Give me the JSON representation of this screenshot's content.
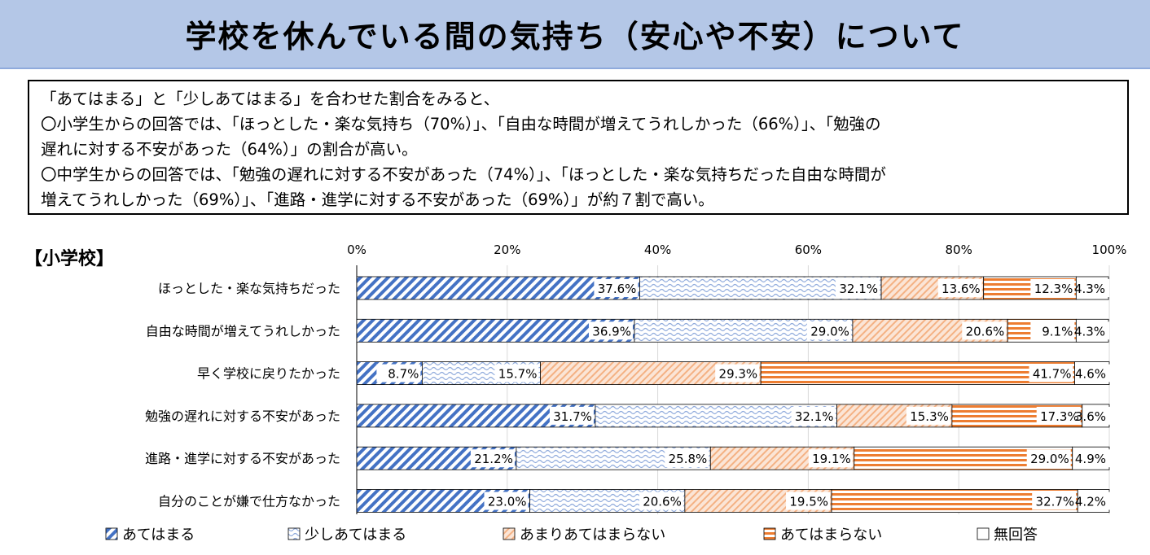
{
  "header": {
    "title": "学校を休んでいる間の気持ち（安心や不安）について"
  },
  "summary": {
    "lines": [
      "「あてはまる」と「少しあてはまる」を合わせた割合をみると、",
      "〇小学生からの回答では、「ほっとした・楽な気持ち（70%）」、「自由な時間が増えてうれしかった（66%）」、「勉強の",
      "遅れに対する不安があった（64%）」の割合が高い。",
      "〇中学生からの回答では、「勉強の遅れに対する不安があった（74%）」、「ほっとした・楽な気持ちだった自由な時間が",
      "増えてうれしかった（69%）」、「進路・進学に対する不安があった（69%）」が約７割で高い。"
    ]
  },
  "section_label": "【小学校】",
  "chart_data": {
    "type": "bar",
    "orientation": "horizontal",
    "stacked": true,
    "xlim": [
      0,
      100
    ],
    "x_ticks": [
      "0%",
      "20%",
      "40%",
      "60%",
      "80%",
      "100%"
    ],
    "categories": [
      "ほっとした・楽な気持ちだった",
      "自由な時間が増えてうれしかった",
      "早く学校に戻りたかった",
      "勉強の遅れに対する不安があった",
      "進路・進学に対する不安があった",
      "自分のことが嫌で仕方なかった"
    ],
    "series": [
      {
        "name": "あてはまる",
        "values": [
          37.6,
          36.9,
          8.7,
          31.7,
          21.2,
          23.0
        ],
        "labels": [
          "37.6%",
          "36.9%",
          "8.7%",
          "31.7%",
          "21.2%",
          "23.0%"
        ],
        "pattern": "diagonal",
        "color": "#4472c4"
      },
      {
        "name": "少しあてはまる",
        "values": [
          32.1,
          29.0,
          15.7,
          32.1,
          25.8,
          20.6
        ],
        "labels": [
          "32.1%",
          "29.0%",
          "15.7%",
          "32.1%",
          "25.8%",
          "20.6%"
        ],
        "pattern": "wave",
        "color": "#8faadc"
      },
      {
        "name": "あまりあてはまらない",
        "values": [
          13.6,
          20.6,
          29.3,
          15.3,
          19.1,
          19.5
        ],
        "labels": [
          "13.6%",
          "20.6%",
          "29.3%",
          "15.3%",
          "19.1%",
          "19.5%"
        ],
        "pattern": "dots",
        "color": "#f4b183"
      },
      {
        "name": "あてはまらない",
        "values": [
          12.3,
          9.1,
          41.7,
          17.3,
          29.0,
          32.7
        ],
        "labels": [
          "12.3%",
          "9.1%",
          "41.7%",
          "17.3%",
          "29.0%",
          "32.7%"
        ],
        "pattern": "horizontal",
        "color": "#ed7d31"
      },
      {
        "name": "無回答",
        "values": [
          4.3,
          4.3,
          4.6,
          3.6,
          4.9,
          4.2
        ],
        "labels": [
          "4.3%",
          "4.3%",
          "4.6%",
          "3.6%",
          "4.9%",
          "4.2%"
        ],
        "pattern": "none",
        "color": "#ffffff"
      }
    ],
    "legend_position": "bottom"
  }
}
